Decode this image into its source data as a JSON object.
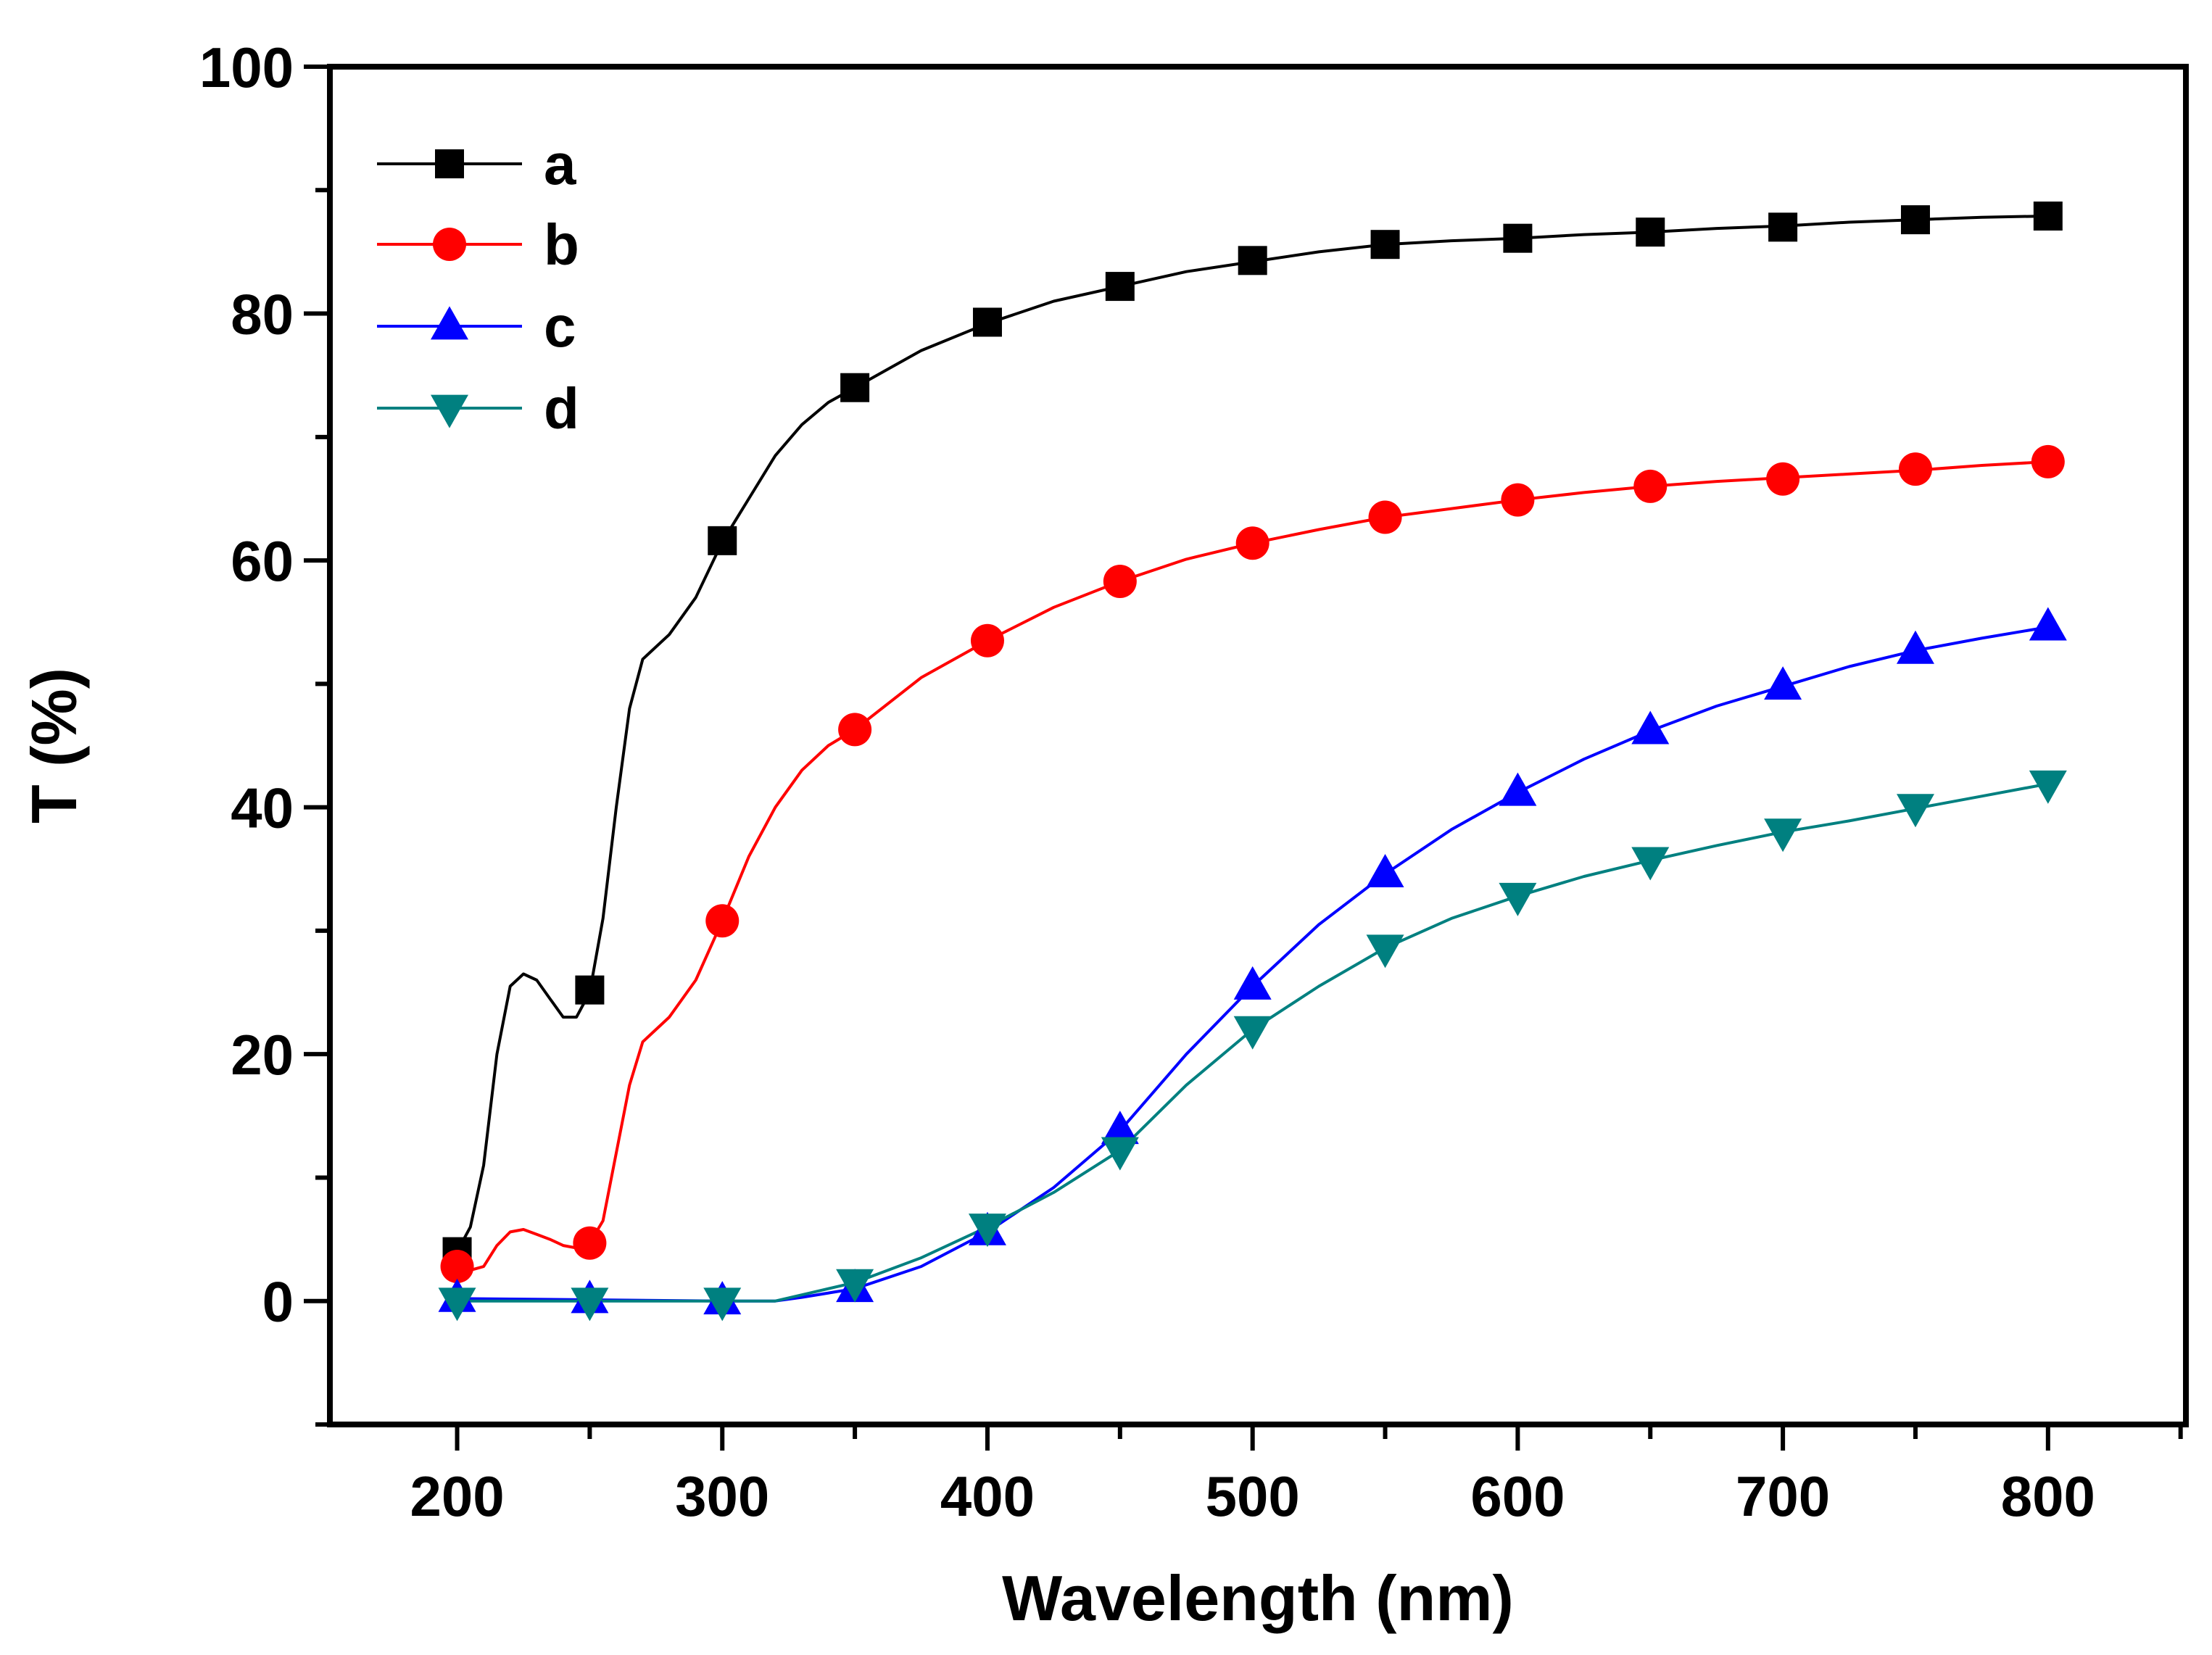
{
  "chart_data": {
    "type": "line",
    "title": "",
    "xlabel": "Wavelength (nm)",
    "ylabel": "T (%)",
    "xlim": [
      152,
      852
    ],
    "ylim": [
      -10,
      100
    ],
    "xticks": [
      200,
      300,
      400,
      500,
      600,
      700,
      800
    ],
    "yticks": [
      0,
      20,
      40,
      60,
      80,
      100
    ],
    "grid": false,
    "legend_position": "top-left",
    "series": [
      {
        "name": "a",
        "color": "#000000",
        "marker": "square",
        "curve": [
          [
            200,
            4.0
          ],
          [
            205,
            6.0
          ],
          [
            210,
            11.0
          ],
          [
            215,
            20.0
          ],
          [
            220,
            25.5
          ],
          [
            225,
            26.5
          ],
          [
            230,
            26.0
          ],
          [
            235,
            24.5
          ],
          [
            240,
            23.0
          ],
          [
            245,
            23.0
          ],
          [
            250,
            25.0
          ],
          [
            255,
            31.0
          ],
          [
            260,
            40.0
          ],
          [
            265,
            48.0
          ],
          [
            270,
            52.0
          ],
          [
            280,
            54.0
          ],
          [
            290,
            57.0
          ],
          [
            300,
            61.5
          ],
          [
            310,
            65.0
          ],
          [
            320,
            68.5
          ],
          [
            330,
            71.0
          ],
          [
            340,
            72.8
          ],
          [
            350,
            74.0
          ],
          [
            375,
            77.0
          ],
          [
            400,
            79.2
          ],
          [
            425,
            81.0
          ],
          [
            450,
            82.2
          ],
          [
            475,
            83.4
          ],
          [
            500,
            84.2
          ],
          [
            525,
            85.0
          ],
          [
            550,
            85.6
          ],
          [
            575,
            85.9
          ],
          [
            600,
            86.1
          ],
          [
            625,
            86.4
          ],
          [
            650,
            86.6
          ],
          [
            675,
            86.9
          ],
          [
            700,
            87.1
          ],
          [
            725,
            87.4
          ],
          [
            750,
            87.6
          ],
          [
            775,
            87.8
          ],
          [
            800,
            87.9
          ]
        ],
        "markers": [
          [
            200,
            4.0
          ],
          [
            250,
            25.2
          ],
          [
            300,
            61.6
          ],
          [
            350,
            74.0
          ],
          [
            400,
            79.3
          ],
          [
            450,
            82.2
          ],
          [
            500,
            84.3
          ],
          [
            550,
            85.6
          ],
          [
            600,
            86.1
          ],
          [
            650,
            86.6
          ],
          [
            700,
            87.0
          ],
          [
            750,
            87.6
          ],
          [
            800,
            87.9
          ]
        ]
      },
      {
        "name": "b",
        "color": "#ff0000",
        "marker": "circle",
        "curve": [
          [
            200,
            2.8
          ],
          [
            205,
            2.5
          ],
          [
            210,
            2.8
          ],
          [
            215,
            4.5
          ],
          [
            220,
            5.6
          ],
          [
            225,
            5.8
          ],
          [
            230,
            5.4
          ],
          [
            235,
            5.0
          ],
          [
            240,
            4.5
          ],
          [
            245,
            4.3
          ],
          [
            250,
            4.7
          ],
          [
            255,
            6.5
          ],
          [
            260,
            12.0
          ],
          [
            265,
            17.5
          ],
          [
            270,
            21.0
          ],
          [
            280,
            23.0
          ],
          [
            290,
            26.0
          ],
          [
            300,
            30.8
          ],
          [
            310,
            36.0
          ],
          [
            320,
            40.0
          ],
          [
            330,
            43.0
          ],
          [
            340,
            45.0
          ],
          [
            350,
            46.3
          ],
          [
            375,
            50.5
          ],
          [
            400,
            53.5
          ],
          [
            425,
            56.2
          ],
          [
            450,
            58.3
          ],
          [
            475,
            60.1
          ],
          [
            500,
            61.4
          ],
          [
            525,
            62.5
          ],
          [
            550,
            63.5
          ],
          [
            575,
            64.2
          ],
          [
            600,
            64.9
          ],
          [
            625,
            65.5
          ],
          [
            650,
            66.0
          ],
          [
            675,
            66.4
          ],
          [
            700,
            66.7
          ],
          [
            725,
            67.0
          ],
          [
            750,
            67.3
          ],
          [
            775,
            67.7
          ],
          [
            800,
            68.0
          ]
        ],
        "markers": [
          [
            200,
            2.8
          ],
          [
            250,
            4.7
          ],
          [
            300,
            30.8
          ],
          [
            350,
            46.3
          ],
          [
            400,
            53.5
          ],
          [
            450,
            58.3
          ],
          [
            500,
            61.4
          ],
          [
            550,
            63.5
          ],
          [
            600,
            64.9
          ],
          [
            650,
            66.0
          ],
          [
            700,
            66.6
          ],
          [
            750,
            67.4
          ],
          [
            800,
            68.0
          ]
        ]
      },
      {
        "name": "c",
        "color": "#0000ff",
        "marker": "triangle-up",
        "curve": [
          [
            200,
            0.2
          ],
          [
            250,
            0.1
          ],
          [
            300,
            0.0
          ],
          [
            320,
            0.0
          ],
          [
            330,
            0.3
          ],
          [
            350,
            1.0
          ],
          [
            375,
            2.8
          ],
          [
            400,
            5.6
          ],
          [
            425,
            9.2
          ],
          [
            450,
            13.8
          ],
          [
            475,
            20.0
          ],
          [
            500,
            25.5
          ],
          [
            525,
            30.5
          ],
          [
            550,
            34.6
          ],
          [
            575,
            38.2
          ],
          [
            600,
            41.2
          ],
          [
            625,
            43.9
          ],
          [
            650,
            46.2
          ],
          [
            675,
            48.2
          ],
          [
            700,
            49.8
          ],
          [
            725,
            51.4
          ],
          [
            750,
            52.7
          ],
          [
            775,
            53.7
          ],
          [
            800,
            54.6
          ]
        ],
        "markers": [
          [
            200,
            0.2
          ],
          [
            250,
            0.1
          ],
          [
            300,
            0.0
          ],
          [
            350,
            1.0
          ],
          [
            400,
            5.6
          ],
          [
            450,
            13.8
          ],
          [
            500,
            25.5
          ],
          [
            550,
            34.6
          ],
          [
            600,
            41.2
          ],
          [
            650,
            46.2
          ],
          [
            700,
            49.8
          ],
          [
            750,
            52.7
          ],
          [
            800,
            54.6
          ]
        ]
      },
      {
        "name": "d",
        "color": "#008080",
        "marker": "triangle-down",
        "curve": [
          [
            200,
            0.0
          ],
          [
            250,
            0.0
          ],
          [
            300,
            0.0
          ],
          [
            320,
            0.0
          ],
          [
            330,
            0.5
          ],
          [
            350,
            1.5
          ],
          [
            375,
            3.5
          ],
          [
            400,
            6.0
          ],
          [
            425,
            8.8
          ],
          [
            450,
            12.2
          ],
          [
            475,
            17.5
          ],
          [
            500,
            22.0
          ],
          [
            525,
            25.5
          ],
          [
            550,
            28.6
          ],
          [
            575,
            31.0
          ],
          [
            600,
            32.8
          ],
          [
            625,
            34.4
          ],
          [
            650,
            35.7
          ],
          [
            675,
            36.9
          ],
          [
            700,
            38.0
          ],
          [
            725,
            38.9
          ],
          [
            750,
            39.9
          ],
          [
            775,
            40.9
          ],
          [
            800,
            41.9
          ]
        ],
        "markers": [
          [
            200,
            0.0
          ],
          [
            250,
            0.0
          ],
          [
            300,
            0.0
          ],
          [
            350,
            1.5
          ],
          [
            400,
            6.0
          ],
          [
            450,
            12.2
          ],
          [
            500,
            22.0
          ],
          [
            550,
            28.6
          ],
          [
            600,
            32.8
          ],
          [
            650,
            35.7
          ],
          [
            700,
            38.0
          ],
          [
            750,
            40.0
          ],
          [
            800,
            41.9
          ]
        ]
      }
    ]
  }
}
